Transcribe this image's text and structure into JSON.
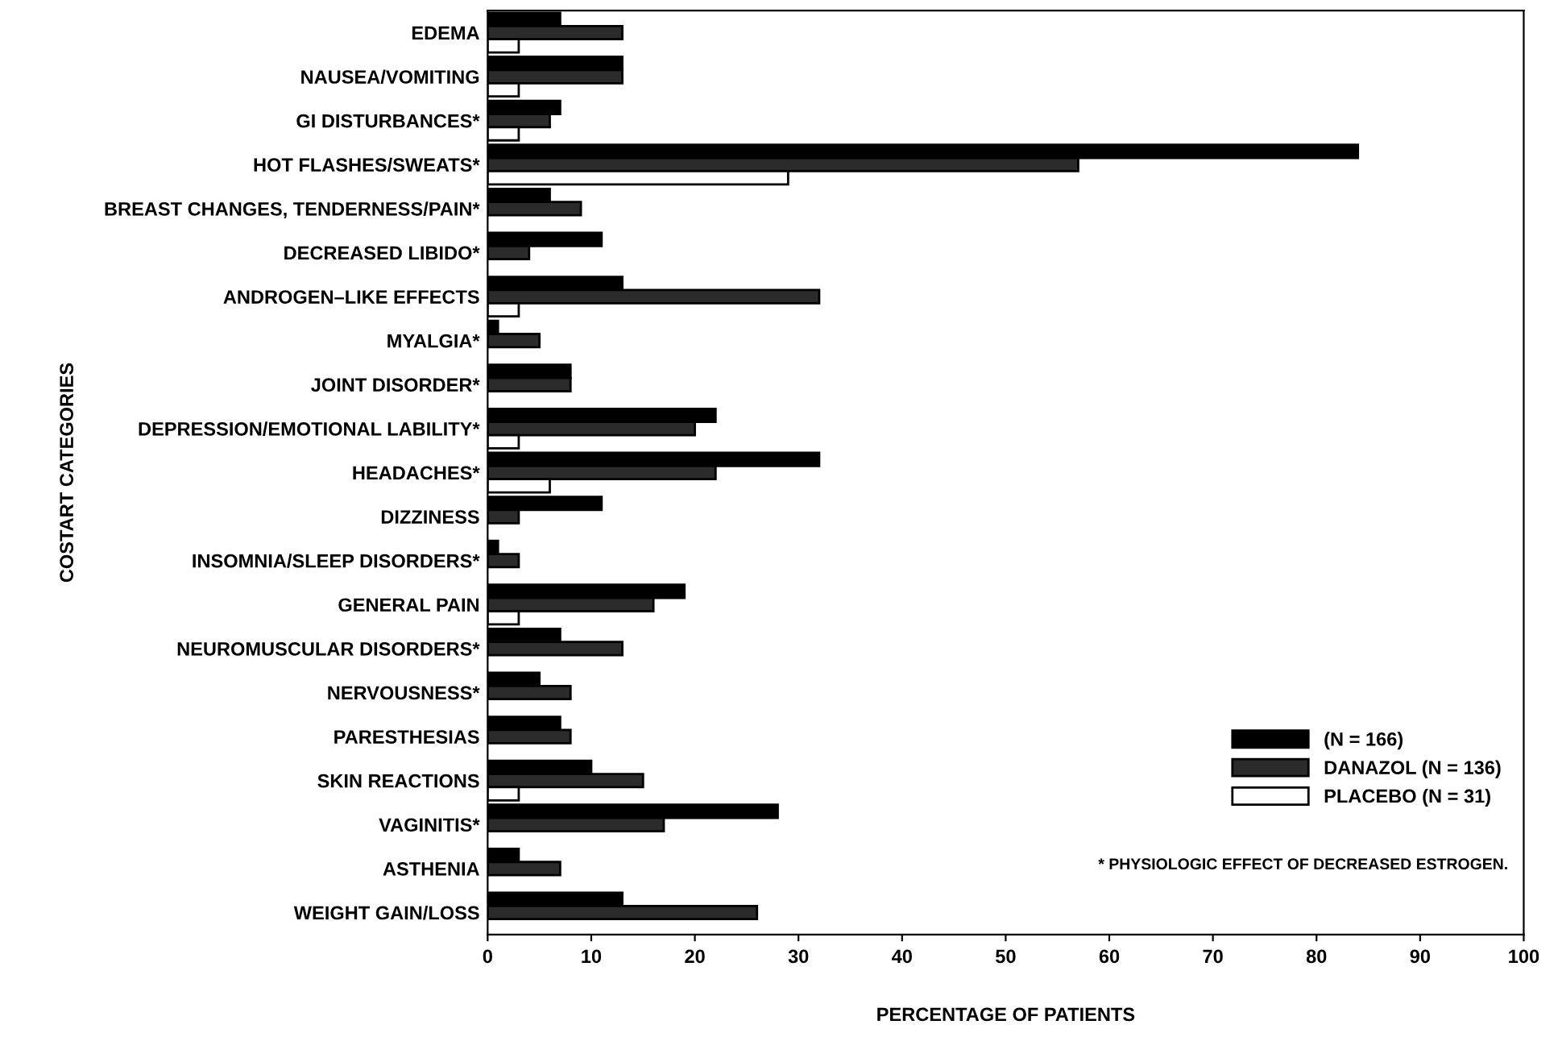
{
  "chart_data": {
    "type": "bar",
    "orientation": "horizontal",
    "xlabel": "PERCENTAGE OF PATIENTS",
    "ylabel": "COSTART CATEGORIES",
    "categories": [
      "EDEMA",
      "NAUSEA/VOMITING",
      "GI DISTURBANCES*",
      "HOT FLASHES/SWEATS*",
      "BREAST CHANGES, TENDERNESS/PAIN*",
      "DECREASED LIBIDO*",
      "ANDROGEN–LIKE EFFECTS",
      "MYALGIA*",
      "JOINT DISORDER*",
      "DEPRESSION/EMOTIONAL LABILITY*",
      "HEADACHES*",
      "DIZZINESS",
      "INSOMNIA/SLEEP DISORDERS*",
      "GENERAL PAIN",
      "NEUROMUSCULAR DISORDERS*",
      "NERVOUSNESS*",
      "PARESTHESIAS",
      "SKIN REACTIONS",
      "VAGINITIS*",
      "ASTHENIA",
      "WEIGHT GAIN/LOSS"
    ],
    "series": [
      {
        "name": "(N = 166)",
        "color": "#000000",
        "values": [
          7,
          13,
          7,
          84,
          6,
          11,
          13,
          1,
          8,
          22,
          32,
          11,
          1,
          19,
          7,
          5,
          7,
          10,
          28,
          3,
          13
        ]
      },
      {
        "name": "DANAZOL (N = 136)",
        "color": "#2b2b2b",
        "values": [
          13,
          13,
          6,
          57,
          9,
          4,
          32,
          5,
          8,
          20,
          22,
          3,
          3,
          16,
          13,
          8,
          8,
          15,
          17,
          7,
          26
        ]
      },
      {
        "name": "PLACEBO (N = 31)",
        "color": "#ffffff",
        "values": [
          3,
          3,
          3,
          29,
          0,
          0,
          3,
          0,
          0,
          3,
          6,
          0,
          0,
          3,
          0,
          0,
          0,
          3,
          0,
          0,
          0
        ]
      }
    ],
    "xlim": [
      0,
      100
    ],
    "xticks": [
      0,
      10,
      20,
      30,
      40,
      50,
      60,
      70,
      80,
      90,
      100
    ],
    "legend": "bottom right",
    "grid": false,
    "annotations": [
      "* PHYSIOLOGIC EFFECT OF DECREASED ESTROGEN."
    ]
  }
}
